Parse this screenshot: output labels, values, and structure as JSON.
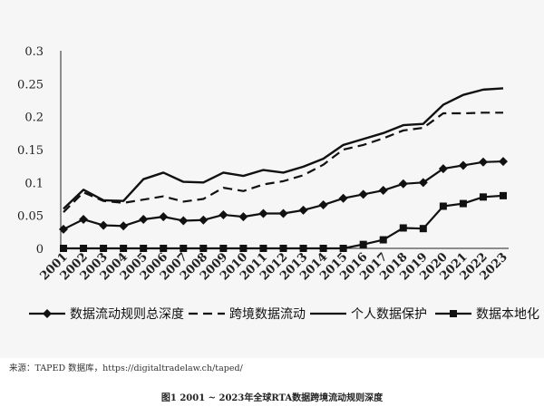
{
  "chart_data": {
    "type": "line",
    "x": [
      "2001",
      "2002",
      "2003",
      "2004",
      "2005",
      "2006",
      "2007",
      "2008",
      "2009",
      "2010",
      "2011",
      "2012",
      "2013",
      "2014",
      "2015",
      "2016",
      "2017",
      "2018",
      "2019",
      "2020",
      "2021",
      "2022",
      "2023"
    ],
    "ylim": [
      0,
      0.3
    ],
    "yticks": [
      "0",
      "0.05",
      "0.1",
      "0.15",
      "0.2",
      "0.25",
      "0.3"
    ],
    "grid": false,
    "legend_position": "bottom",
    "series": [
      {
        "name": "数据流动规则总深度",
        "style": "solid-diamond",
        "values": [
          0.029,
          0.044,
          0.035,
          0.034,
          0.044,
          0.048,
          0.042,
          0.043,
          0.051,
          0.048,
          0.053,
          0.053,
          0.058,
          0.066,
          0.076,
          0.082,
          0.088,
          0.098,
          0.1,
          0.121,
          0.126,
          0.131,
          0.132
        ]
      },
      {
        "name": "跨境数据流动",
        "style": "dashed",
        "values": [
          0.055,
          0.085,
          0.072,
          0.069,
          0.074,
          0.079,
          0.071,
          0.075,
          0.092,
          0.087,
          0.097,
          0.102,
          0.111,
          0.127,
          0.15,
          0.157,
          0.167,
          0.179,
          0.183,
          0.205,
          0.205,
          0.206,
          0.206
        ]
      },
      {
        "name": "个人数据保护",
        "style": "solid",
        "values": [
          0.06,
          0.089,
          0.073,
          0.072,
          0.105,
          0.115,
          0.101,
          0.1,
          0.115,
          0.11,
          0.119,
          0.115,
          0.124,
          0.136,
          0.157,
          0.166,
          0.175,
          0.187,
          0.189,
          0.218,
          0.233,
          0.241,
          0.243
        ]
      },
      {
        "name": "数据本地化",
        "style": "solid-square",
        "values": [
          0,
          0,
          0,
          0,
          0,
          0,
          0,
          0,
          0,
          0,
          0,
          0,
          0,
          0,
          0,
          0.006,
          0.013,
          0.031,
          0.03,
          0.064,
          0.068,
          0.078,
          0.08
        ]
      }
    ]
  },
  "source_note": "来源：TAPED 数据库，https://digitaltradelaw.ch/taped/",
  "caption": "图1  2001 ~ 2023年全球RTA数据跨境流动规则深度"
}
